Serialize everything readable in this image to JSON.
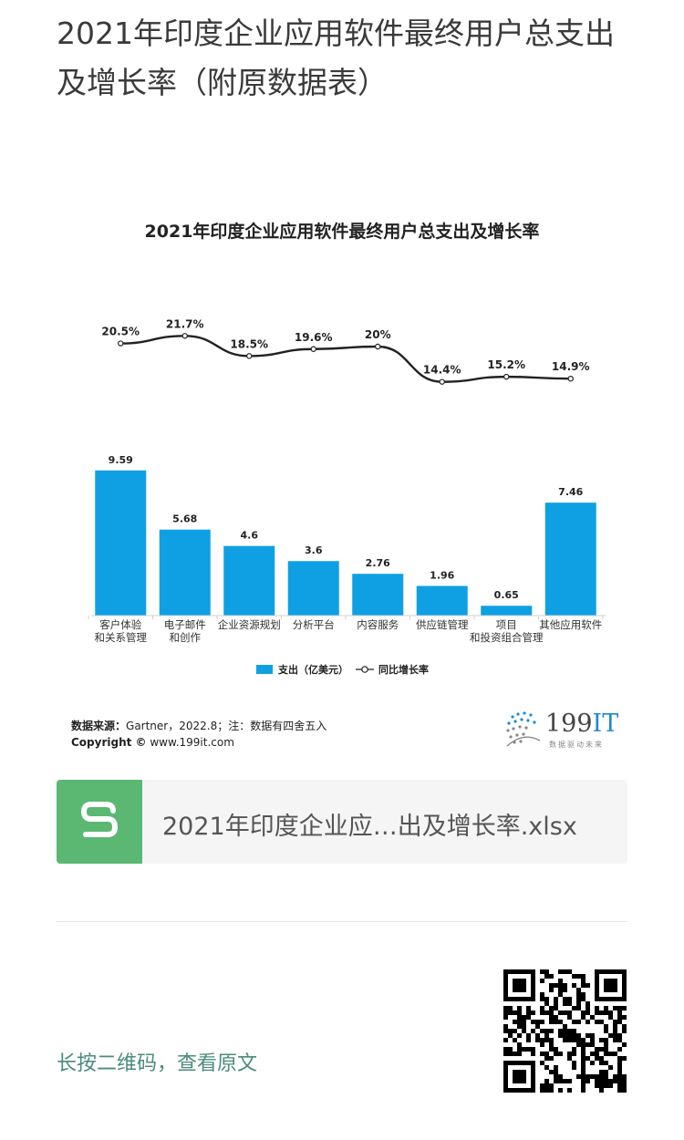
{
  "article": {
    "title": "2021年印度企业应用软件最终用户总支出及增长率（附原数据表）"
  },
  "chart_data": {
    "type": "bar",
    "title": "2021年印度企业应用软件最终用户总支出及增长率",
    "categories": [
      [
        "客户体验",
        "和关系管理"
      ],
      [
        "电子邮件",
        "和创作"
      ],
      [
        "企业资源规划"
      ],
      [
        "分析平台"
      ],
      [
        "内容服务"
      ],
      [
        "供应链管理"
      ],
      [
        "项目",
        "和投资组合管理"
      ],
      [
        "其他应用软件"
      ]
    ],
    "series": [
      {
        "name": "支出（亿美元）",
        "type": "bar",
        "color": "#0fa0e3",
        "values": [
          9.59,
          5.68,
          4.6,
          3.6,
          2.76,
          1.96,
          0.65,
          7.46
        ],
        "labels": [
          "9.59",
          "5.68",
          "4.6",
          "3.6",
          "2.76",
          "1.96",
          "0.65",
          "7.46"
        ]
      },
      {
        "name": "同比增长率",
        "type": "line",
        "color": "#222222",
        "values": [
          20.5,
          21.7,
          18.5,
          19.6,
          20,
          14.4,
          15.2,
          14.9
        ],
        "labels": [
          "20.5%",
          "21.7%",
          "18.5%",
          "19.6%",
          "20%",
          "14.4%",
          "15.2%",
          "14.9%"
        ]
      }
    ],
    "legend": {
      "position": "bottom"
    },
    "grid": false
  },
  "footer": {
    "source_label": "数据来源：",
    "source_text": "Gartner，2022.8；注：数据有四舍五入",
    "copyright_label": "Copyright ©",
    "copyright_text": " www.199it.com",
    "brand_name_num": "199",
    "brand_name_it": "IT",
    "brand_slogan": "数据驱动未来"
  },
  "file": {
    "icon": "spreadsheet-icon",
    "name": "2021年印度企业应…出及增长率.xlsx"
  },
  "qr": {
    "hint": "长按二维码，查看原文"
  }
}
